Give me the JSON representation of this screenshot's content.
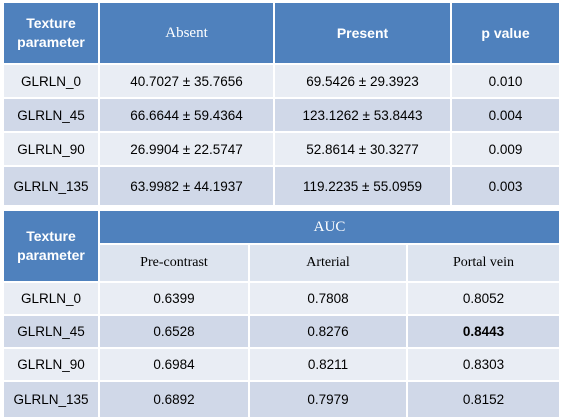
{
  "table1": {
    "headers": {
      "param_line1": "Texture",
      "param_line2": "parameter",
      "absent": "Absent",
      "present": "Present",
      "p_value": "p value"
    },
    "rows": [
      {
        "param": "GLRLN_0",
        "absent": "40.7027 ± 35.7656",
        "present": "69.5426 ± 29.3923",
        "p": "0.010"
      },
      {
        "param": "GLRLN_45",
        "absent": "66.6644 ± 59.4364",
        "present": "123.1262  ± 53.8443",
        "p": "0.004"
      },
      {
        "param": "GLRLN_90",
        "absent": "26.9904 ± 22.5747",
        "present": "52.8614  ± 30.3277",
        "p": "0.009"
      },
      {
        "param": "GLRLN_135",
        "absent": "63.9982 ±  44.1937",
        "present": "119.2235 ± 55.0959",
        "p": "0.003"
      }
    ]
  },
  "table2": {
    "headers": {
      "param_line1": "Texture",
      "param_line2": "parameter",
      "auc": "AUC",
      "pre_contrast": "Pre-contrast",
      "arterial": "Arterial",
      "portal_vein": "Portal vein"
    },
    "rows": [
      {
        "param": "GLRLN_0",
        "pre": "0.6399",
        "arterial": "0.7808",
        "portal": "0.8052"
      },
      {
        "param": "GLRLN_45",
        "pre": "0.6528",
        "arterial": "0.8276",
        "portal": "0.8443"
      },
      {
        "param": "GLRLN_90",
        "pre": "0.6984",
        "arterial": "0.8211",
        "portal": "0.8303"
      },
      {
        "param": "GLRLN_135",
        "pre": "0.6892",
        "arterial": "0.7979",
        "portal": "0.8152"
      }
    ]
  },
  "colors": {
    "header_blue": "#4f81bd",
    "row_light": "#e9edf4",
    "row_dark": "#d0d8e8"
  }
}
